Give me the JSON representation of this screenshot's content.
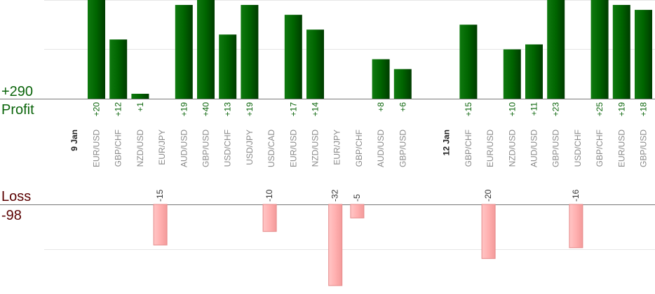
{
  "chart_data": {
    "type": "bar",
    "profit": {
      "label": "Profit",
      "total": "+290",
      "color": "#0a640a"
    },
    "loss": {
      "label": "Loss",
      "total": "-98",
      "color": "#5a0000"
    },
    "categories": [
      "EUR/USD",
      "GBP/CHF",
      "NZD/USD",
      "EUR/JPY",
      "AUD/USD",
      "GBP/USD",
      "USD/CHF",
      "USD/JPY",
      "USD/CAD",
      "EUR/USD",
      "NZD/USD",
      "EUR/JPY",
      "GBP/CHF",
      "AUD/USD",
      "GBP/USD",
      "GBP/CHF",
      "EUR/USD",
      "NZD/USD",
      "AUD/USD",
      "GBP/USD",
      "USD/CHF",
      "GBP/CHF",
      "EUR/USD",
      "GBP/USD"
    ],
    "values": [
      20,
      12,
      1,
      -15,
      19,
      40,
      13,
      19,
      -10,
      17,
      14,
      -32,
      -5,
      8,
      6,
      15,
      -20,
      10,
      11,
      23,
      -16,
      25,
      19,
      18
    ],
    "value_labels": [
      "+20",
      "+12",
      "+1",
      "-15",
      "+19",
      "+40",
      "+13",
      "+19",
      "-10",
      "+17",
      "+14",
      "-32",
      "-5",
      "+8",
      "+6",
      "+15",
      "-20",
      "+10",
      "+11",
      "+23",
      "-16",
      "+25",
      "+19",
      "+18"
    ],
    "column_slots": [
      0,
      1,
      2,
      3,
      4,
      5,
      6,
      7,
      8,
      9,
      10,
      11,
      12,
      13,
      14,
      17,
      18,
      19,
      20,
      21,
      22,
      23,
      24,
      25
    ],
    "date_markers": [
      {
        "label": "9 Jan",
        "before_slot": 0
      },
      {
        "label": "12 Jan",
        "before_slot": 17
      }
    ],
    "profit_axis_max": 20,
    "loss_axis_min": -30
  }
}
